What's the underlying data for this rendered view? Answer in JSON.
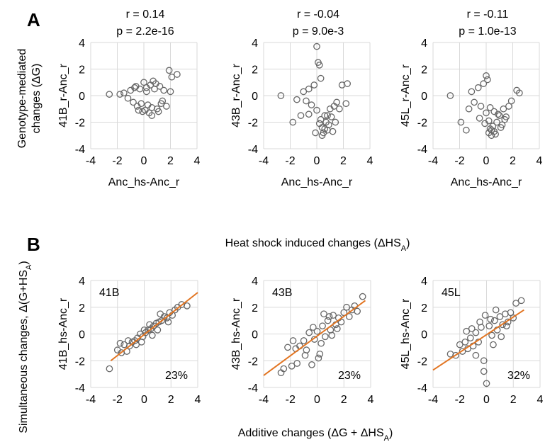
{
  "panel_labels": {
    "a": "A",
    "b": "B"
  },
  "row_a": {
    "shared_ylabel": [
      "Genotype-mediated",
      "changes (ΔG)"
    ],
    "caption": "Heat shock induced changes (ΔHS_A)"
  },
  "row_b": {
    "shared_ylabel": "Simultaneous changes, Δ(G+HS_A)",
    "caption": "Additive changes (ΔG + ΔHS_A)"
  },
  "colors": {
    "marker": "#666666",
    "fit_line": "#E27522",
    "grid": "#D9D9D9"
  },
  "chart_data": [
    {
      "type": "scatter",
      "id": "a1",
      "stats": [
        "r = 0.14",
        "p = 2.2e-16"
      ],
      "xlabel": "Anc_hs-Anc_r",
      "ylabel": "41B_r-Anc_r",
      "xlim": [
        -4,
        4
      ],
      "ylim": [
        -4,
        4
      ],
      "xticks": [
        -4,
        -2,
        0,
        2,
        4
      ],
      "yticks": [
        -4,
        -2,
        0,
        2,
        4
      ],
      "grid": true,
      "x": [
        -2.6,
        -1.8,
        -1.5,
        -1.2,
        -1.0,
        -0.8,
        -0.6,
        -0.5,
        -0.3,
        -0.2,
        0.0,
        0.1,
        0.2,
        0.3,
        0.5,
        0.6,
        0.8,
        1.0,
        1.2,
        1.3,
        1.5,
        1.7,
        1.9,
        2.0,
        2.1,
        2.5,
        0.6,
        0.4,
        -0.1,
        0.9,
        1.4,
        -0.7,
        0.2,
        1.1,
        -0.4,
        0.7
      ],
      "y": [
        0.1,
        0.1,
        0.2,
        -0.2,
        0.4,
        -0.5,
        0.7,
        -0.8,
        0.5,
        -0.6,
        1.0,
        -1.1,
        0.6,
        -0.7,
        0.8,
        -0.9,
        0.5,
        -1.0,
        0.7,
        -0.6,
        0.4,
        -0.8,
        1.9,
        0.3,
        1.4,
        1.6,
        -1.5,
        -1.3,
        -1.2,
        0.9,
        -0.4,
        0.6,
        0.3,
        -1.2,
        -1.1,
        1.1
      ]
    },
    {
      "type": "scatter",
      "id": "a2",
      "stats": [
        "r = -0.04",
        "p = 9.0e-3"
      ],
      "xlabel": "Anc_hs-Anc_r",
      "ylabel": "43B_r-Anc_r",
      "xlim": [
        -4,
        4
      ],
      "ylim": [
        -4,
        4
      ],
      "xticks": [
        -4,
        -2,
        0,
        2,
        4
      ],
      "yticks": [
        -4,
        -2,
        0,
        2,
        4
      ],
      "grid": true,
      "x": [
        -2.7,
        -1.8,
        -1.5,
        -1.2,
        -1.0,
        -0.8,
        -0.6,
        -0.4,
        -0.2,
        0.0,
        0.1,
        0.2,
        0.3,
        0.4,
        0.5,
        0.6,
        0.7,
        0.8,
        0.9,
        1.0,
        1.1,
        1.3,
        1.5,
        1.7,
        1.9,
        2.2,
        2.3,
        -0.1,
        0.2,
        0.3,
        0.6,
        1.2,
        -0.6,
        0.4,
        0.0,
        1.4,
        0.8
      ],
      "y": [
        0.0,
        -2.0,
        -0.3,
        -1.5,
        0.3,
        -0.4,
        0.5,
        -0.7,
        0.8,
        3.7,
        2.5,
        2.3,
        1.3,
        -3.0,
        -2.8,
        -2.5,
        -2.0,
        -1.5,
        -2.2,
        -1.0,
        -1.6,
        -0.8,
        -0.5,
        -1.0,
        0.8,
        -0.6,
        0.9,
        -2.8,
        -2.1,
        -1.8,
        -1.5,
        -2.7,
        -1.4,
        -2.4,
        -1.1,
        -2.0,
        -2.6
      ]
    },
    {
      "type": "scatter",
      "id": "a3",
      "stats": [
        "r = -0.11",
        "p = 1.0e-13"
      ],
      "xlabel": "Anc_hs-Anc_r",
      "ylabel": "45L_r-Anc_r",
      "xlim": [
        -4,
        4
      ],
      "ylim": [
        -4,
        4
      ],
      "xticks": [
        -4,
        -2,
        0,
        2,
        4
      ],
      "yticks": [
        -4,
        -2,
        0,
        2,
        4
      ],
      "grid": true,
      "x": [
        -2.7,
        -1.9,
        -1.5,
        -1.3,
        -1.1,
        -0.9,
        -0.6,
        -0.4,
        -0.2,
        0.0,
        0.1,
        0.2,
        0.3,
        0.4,
        0.5,
        0.6,
        0.8,
        1.0,
        1.2,
        1.4,
        1.5,
        1.7,
        1.9,
        2.3,
        2.5,
        -0.1,
        0.2,
        0.4,
        0.6,
        0.9,
        1.1,
        -0.5,
        0.3,
        0.7,
        1.3,
        0.0
      ],
      "y": [
        0.0,
        -2.0,
        -2.6,
        -1.0,
        0.3,
        -0.5,
        0.6,
        -0.8,
        0.9,
        1.5,
        1.2,
        -2.8,
        -2.5,
        -3.0,
        -2.3,
        -2.7,
        -2.0,
        -1.5,
        -2.2,
        -1.8,
        -1.6,
        -0.8,
        -0.4,
        0.4,
        0.2,
        -2.1,
        -1.9,
        -2.6,
        -1.2,
        -1.4,
        -2.4,
        -1.7,
        -0.9,
        -2.9,
        -1.0,
        -1.3
      ]
    },
    {
      "type": "scatter",
      "id": "b1",
      "panel_label": "41B",
      "percent": "23%",
      "xlabel": "",
      "ylabel": "41B_hs-Anc_r",
      "xlim": [
        -4,
        4
      ],
      "ylim": [
        -4,
        4
      ],
      "xticks": [
        -4,
        -2,
        0,
        2,
        4
      ],
      "yticks": [
        -4,
        -2,
        0,
        2,
        4
      ],
      "grid": true,
      "fit": {
        "x": [
          -2.5,
          4.0
        ],
        "y": [
          -2.0,
          3.1
        ]
      },
      "x": [
        -2.6,
        -2.0,
        -1.7,
        -1.5,
        -1.3,
        -1.1,
        -0.9,
        -0.7,
        -0.5,
        -0.3,
        -0.1,
        0.1,
        0.3,
        0.5,
        0.7,
        0.9,
        1.1,
        1.3,
        1.5,
        1.7,
        1.9,
        2.1,
        2.3,
        2.5,
        2.8,
        3.2,
        -1.2,
        -0.6,
        0.0,
        0.6,
        1.2,
        1.8,
        -1.8,
        -0.2,
        0.4,
        1.0
      ],
      "y": [
        -2.6,
        -1.2,
        -1.4,
        -0.8,
        -1.3,
        -0.9,
        -0.6,
        -0.5,
        -0.3,
        0.0,
        -0.2,
        0.1,
        0.3,
        0.4,
        0.6,
        0.8,
        0.9,
        1.0,
        1.3,
        1.2,
        1.6,
        1.4,
        1.8,
        2.0,
        2.2,
        2.1,
        -0.5,
        -0.8,
        0.3,
        -0.1,
        1.5,
        0.9,
        -0.7,
        -0.6,
        0.7,
        0.3
      ]
    },
    {
      "type": "scatter",
      "id": "b2",
      "panel_label": "43B",
      "percent": "23%",
      "xlabel": "",
      "ylabel": "43B_hs-Anc_r",
      "xlim": [
        -4,
        4
      ],
      "ylim": [
        -4,
        4
      ],
      "xticks": [
        -4,
        -2,
        0,
        2,
        4
      ],
      "yticks": [
        -4,
        -2,
        0,
        2,
        4
      ],
      "grid": true,
      "fit": {
        "x": [
          -4.0,
          3.6
        ],
        "y": [
          -3.1,
          2.5
        ]
      },
      "x": [
        -2.7,
        -2.5,
        -2.2,
        -1.9,
        -1.6,
        -1.3,
        -1.0,
        -0.8,
        -0.6,
        -0.4,
        -0.2,
        0.0,
        0.2,
        0.4,
        0.6,
        0.8,
        1.0,
        1.2,
        1.4,
        1.6,
        1.8,
        2.0,
        2.2,
        2.4,
        2.6,
        2.8,
        3.0,
        3.4,
        -1.5,
        -0.9,
        -0.3,
        0.3,
        0.9,
        1.5,
        -1.8,
        0.1,
        0.5,
        1.1
      ],
      "y": [
        -2.9,
        -2.6,
        -1.0,
        -2.4,
        -1.1,
        -0.9,
        -0.5,
        -1.2,
        0.1,
        -2.3,
        -0.4,
        0.2,
        -1.5,
        0.6,
        -0.2,
        1.0,
        0.3,
        1.4,
        0.7,
        1.2,
        0.9,
        1.6,
        2.0,
        1.3,
        1.8,
        2.1,
        1.7,
        2.8,
        -2.2,
        -1.6,
        0.5,
        -0.7,
        1.3,
        0.4,
        -0.5,
        -1.8,
        1.5,
        -0.1
      ]
    },
    {
      "type": "scatter",
      "id": "b3",
      "panel_label": "45L",
      "percent": "32%",
      "xlabel": "",
      "ylabel": "45L_hs-Anc_r",
      "xlim": [
        -4,
        4
      ],
      "ylim": [
        -4,
        4
      ],
      "xticks": [
        -4,
        -2,
        0,
        2,
        4
      ],
      "yticks": [
        -4,
        -2,
        0,
        2,
        4
      ],
      "grid": true,
      "fit": {
        "x": [
          -4.0,
          2.8
        ],
        "y": [
          -2.7,
          1.8
        ]
      },
      "x": [
        -2.7,
        -2.3,
        -2.0,
        -1.8,
        -1.6,
        -1.4,
        -1.2,
        -1.0,
        -0.8,
        -0.6,
        -0.4,
        -0.2,
        0.0,
        0.2,
        0.4,
        0.6,
        0.8,
        1.0,
        1.2,
        1.4,
        1.6,
        1.8,
        2.0,
        2.2,
        2.6,
        -0.2,
        -0.1,
        0.3,
        -1.1,
        -0.5,
        0.5,
        1.1,
        -1.5,
        -0.8,
        0.7,
        1.5
      ],
      "y": [
        -1.5,
        -1.6,
        -0.8,
        -1.3,
        -0.6,
        -1.1,
        -0.3,
        -0.9,
        0.1,
        -0.6,
        0.5,
        -2.8,
        -3.7,
        0.6,
        -0.1,
        1.0,
        0.3,
        1.3,
        0.7,
        1.5,
        0.9,
        1.6,
        1.2,
        2.3,
        2.5,
        -2.0,
        1.4,
        1.1,
        0.4,
        0.9,
        -0.8,
        -0.2,
        0.2,
        -1.6,
        1.8,
        0.6
      ]
    }
  ]
}
